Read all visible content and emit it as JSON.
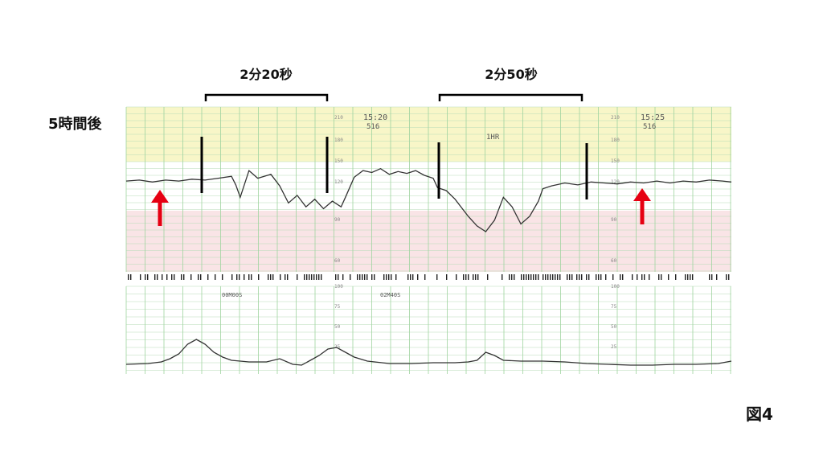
{
  "labels": {
    "elapsed": "5時間後",
    "figure": "図4",
    "span1": "2分20秒",
    "span2": "2分50秒"
  },
  "strip": {
    "time1": "15:20",
    "time2": "15:25",
    "code1": "516",
    "code2": "516",
    "hr_marker": "1HR",
    "stamp1": "00M00S",
    "stamp2": "02M40S",
    "fhr_ticks": [
      "210",
      "180",
      "150",
      "120",
      "90",
      "60"
    ],
    "uc_ticks": [
      "100",
      "75",
      "50",
      "25"
    ]
  },
  "colors": {
    "arrow": "#e60012",
    "bracket": "#000000",
    "trace": "#333333",
    "grid": "#9fd49f",
    "band_yellow": "#f8f6c8",
    "band_pink": "#f9e4e6"
  },
  "chart_data": {
    "type": "line",
    "title": "",
    "xlabel": "",
    "ylabel": "",
    "series": [
      {
        "values": [
          [
            0,
            145
          ],
          [
            3,
            146
          ],
          [
            6,
            144
          ],
          [
            9,
            146
          ],
          [
            12,
            145
          ],
          [
            15,
            147
          ],
          [
            18,
            146
          ],
          [
            21,
            148
          ],
          [
            24,
            150
          ],
          [
            25,
            141
          ],
          [
            26,
            128
          ],
          [
            28,
            156
          ],
          [
            30,
            148
          ],
          [
            33,
            152
          ],
          [
            35,
            140
          ],
          [
            37,
            122
          ],
          [
            39,
            130
          ],
          [
            41,
            118
          ],
          [
            43,
            126
          ],
          [
            45,
            116
          ],
          [
            47,
            124
          ],
          [
            49,
            118
          ],
          [
            50,
            128
          ],
          [
            52,
            149
          ],
          [
            54,
            156
          ],
          [
            56,
            154
          ],
          [
            58,
            158
          ],
          [
            60,
            152
          ],
          [
            62,
            155
          ],
          [
            64,
            153
          ],
          [
            66,
            156
          ],
          [
            68,
            151
          ],
          [
            70,
            148
          ],
          [
            71,
            138
          ],
          [
            73,
            135
          ],
          [
            75,
            126
          ],
          [
            78,
            108
          ],
          [
            80,
            98
          ],
          [
            82,
            92
          ],
          [
            84,
            104
          ],
          [
            86,
            128
          ],
          [
            88,
            118
          ],
          [
            90,
            100
          ],
          [
            92,
            108
          ],
          [
            94,
            124
          ],
          [
            95,
            137
          ],
          [
            97,
            140
          ],
          [
            100,
            143
          ],
          [
            103,
            141
          ],
          [
            106,
            144
          ],
          [
            109,
            143
          ],
          [
            112,
            142
          ],
          [
            115,
            144
          ],
          [
            118,
            143
          ],
          [
            121,
            145
          ],
          [
            124,
            143
          ],
          [
            127,
            145
          ],
          [
            130,
            144
          ],
          [
            133,
            146
          ],
          [
            136,
            145
          ],
          [
            138,
            144
          ]
        ],
        "ylim": [
          60,
          210
        ]
      },
      {
        "values": [
          [
            0,
            5
          ],
          [
            5,
            6
          ],
          [
            8,
            8
          ],
          [
            10,
            12
          ],
          [
            12,
            18
          ],
          [
            14,
            30
          ],
          [
            16,
            36
          ],
          [
            18,
            30
          ],
          [
            20,
            20
          ],
          [
            22,
            14
          ],
          [
            24,
            10
          ],
          [
            28,
            8
          ],
          [
            32,
            8
          ],
          [
            35,
            12
          ],
          [
            38,
            5
          ],
          [
            40,
            4
          ],
          [
            42,
            10
          ],
          [
            44,
            16
          ],
          [
            46,
            24
          ],
          [
            48,
            26
          ],
          [
            50,
            20
          ],
          [
            52,
            14
          ],
          [
            55,
            9
          ],
          [
            60,
            6
          ],
          [
            65,
            6
          ],
          [
            70,
            7
          ],
          [
            75,
            7
          ],
          [
            78,
            8
          ],
          [
            80,
            10
          ],
          [
            82,
            20
          ],
          [
            84,
            16
          ],
          [
            86,
            10
          ],
          [
            90,
            9
          ],
          [
            95,
            9
          ],
          [
            100,
            8
          ],
          [
            105,
            6
          ],
          [
            110,
            5
          ],
          [
            115,
            4
          ],
          [
            120,
            4
          ],
          [
            125,
            5
          ],
          [
            130,
            5
          ],
          [
            135,
            6
          ],
          [
            138,
            9
          ]
        ],
        "ylim": [
          0,
          100
        ]
      }
    ]
  }
}
